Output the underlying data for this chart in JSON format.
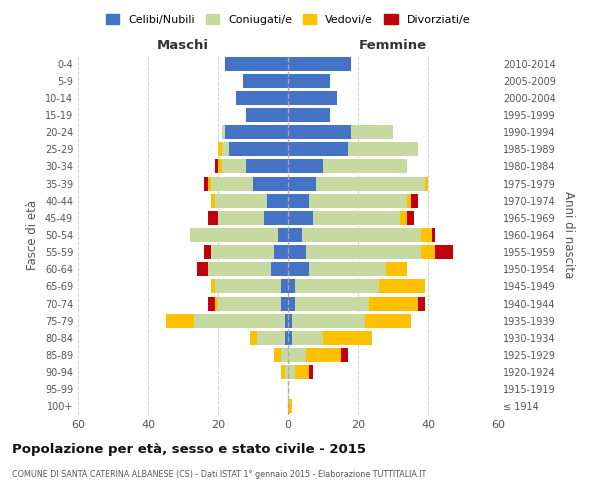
{
  "age_groups": [
    "100+",
    "95-99",
    "90-94",
    "85-89",
    "80-84",
    "75-79",
    "70-74",
    "65-69",
    "60-64",
    "55-59",
    "50-54",
    "45-49",
    "40-44",
    "35-39",
    "30-34",
    "25-29",
    "20-24",
    "15-19",
    "10-14",
    "5-9",
    "0-4"
  ],
  "birth_years": [
    "≤ 1914",
    "1915-1919",
    "1920-1924",
    "1925-1929",
    "1930-1934",
    "1935-1939",
    "1940-1944",
    "1945-1949",
    "1950-1954",
    "1955-1959",
    "1960-1964",
    "1965-1969",
    "1970-1974",
    "1975-1979",
    "1980-1984",
    "1985-1989",
    "1990-1994",
    "1995-1999",
    "2000-2004",
    "2005-2009",
    "2010-2014"
  ],
  "colors": {
    "celibi": "#4472c4",
    "coniugati": "#c5d9a0",
    "vedovi": "#ffc000",
    "divorziati": "#c0000b"
  },
  "maschi": {
    "celibi": [
      0,
      0,
      0,
      0,
      1,
      1,
      2,
      2,
      5,
      4,
      3,
      7,
      6,
      10,
      12,
      17,
      18,
      12,
      15,
      13,
      18
    ],
    "coniugati": [
      0,
      0,
      1,
      2,
      8,
      26,
      18,
      19,
      18,
      18,
      25,
      13,
      15,
      12,
      7,
      2,
      1,
      0,
      0,
      0,
      0
    ],
    "vedovi": [
      0,
      0,
      1,
      2,
      2,
      8,
      1,
      1,
      0,
      0,
      0,
      0,
      1,
      1,
      1,
      1,
      0,
      0,
      0,
      0,
      0
    ],
    "divorziati": [
      0,
      0,
      0,
      0,
      0,
      0,
      2,
      0,
      3,
      2,
      0,
      3,
      0,
      1,
      1,
      0,
      0,
      0,
      0,
      0,
      0
    ]
  },
  "femmine": {
    "celibi": [
      0,
      0,
      0,
      0,
      1,
      1,
      2,
      2,
      6,
      5,
      4,
      7,
      6,
      8,
      10,
      17,
      18,
      12,
      14,
      12,
      18
    ],
    "coniugati": [
      0,
      0,
      2,
      5,
      9,
      21,
      21,
      24,
      22,
      33,
      34,
      25,
      28,
      31,
      24,
      20,
      12,
      0,
      0,
      0,
      0
    ],
    "vedovi": [
      1,
      0,
      4,
      10,
      14,
      13,
      14,
      13,
      6,
      4,
      3,
      2,
      1,
      1,
      0,
      0,
      0,
      0,
      0,
      0,
      0
    ],
    "divorziati": [
      0,
      0,
      1,
      2,
      0,
      0,
      2,
      0,
      0,
      5,
      1,
      2,
      2,
      0,
      0,
      0,
      0,
      0,
      0,
      0,
      0
    ]
  },
  "xlim": 60,
  "title": "Popolazione per età, sesso e stato civile - 2015",
  "subtitle": "COMUNE DI SANTA CATERINA ALBANESE (CS) - Dati ISTAT 1° gennaio 2015 - Elaborazione TUTTITALIA.IT",
  "ylabel": "Fasce di età",
  "ylabel_right": "Anni di nascita",
  "xlabel_maschi": "Maschi",
  "xlabel_femmine": "Femmine",
  "legend_labels": [
    "Celibi/Nubili",
    "Coniugati/e",
    "Vedovi/e",
    "Divorziati/e"
  ],
  "background_color": "#ffffff",
  "grid_color": "#cccccc"
}
